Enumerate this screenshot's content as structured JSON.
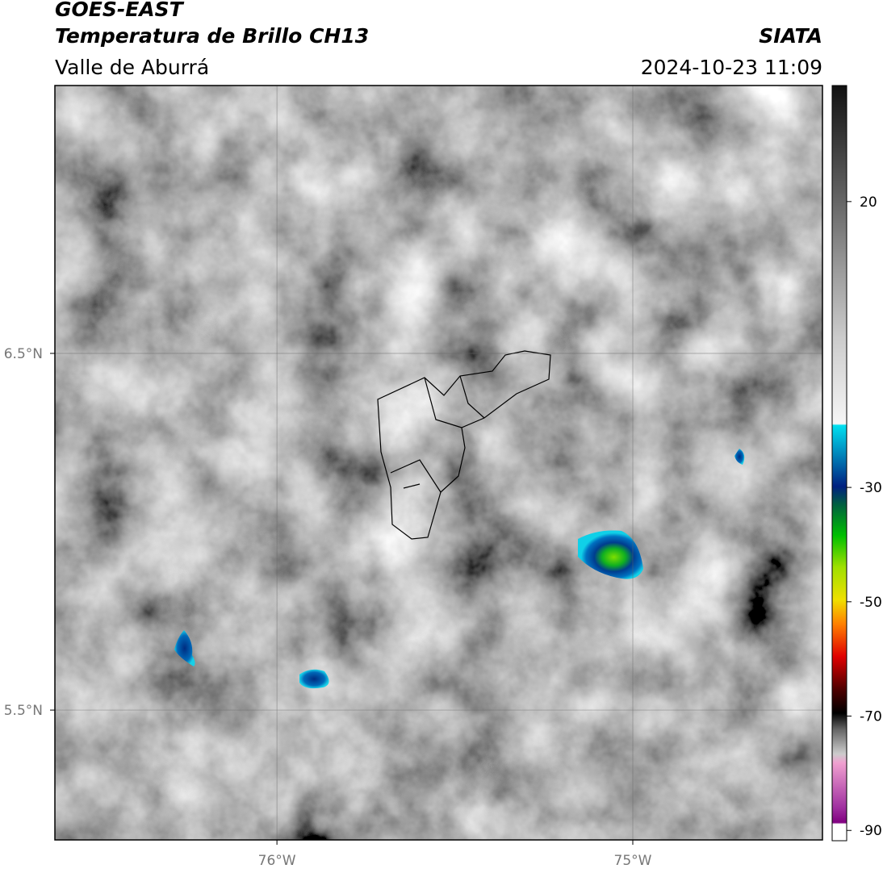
{
  "header": {
    "title": "GOES-EAST",
    "subtitle": "Temperatura de Brillo CH13",
    "region": "Valle de Aburrá",
    "source": "SIATA",
    "timestamp": "2024-10-23 11:09"
  },
  "map": {
    "xlim": [
      -76.624,
      -74.467
    ],
    "ylim": [
      5.136,
      7.251
    ],
    "xticks": [
      {
        "value": -76,
        "label": "76°W"
      },
      {
        "value": -75,
        "label": "75°W"
      }
    ],
    "yticks": [
      {
        "value": 6.5,
        "label": "6.5°N"
      },
      {
        "value": 5.5,
        "label": "5.5°N"
      }
    ]
  },
  "colorbar": {
    "lim": [
      -91.8,
      40.3
    ],
    "ticks": [
      20,
      -30,
      -50,
      -70,
      -90
    ]
  }
}
